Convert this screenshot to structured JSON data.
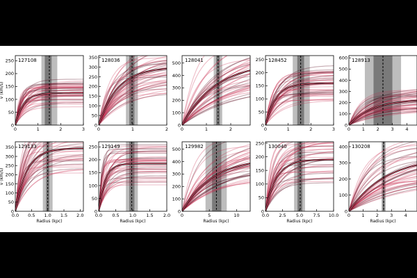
{
  "chart_data": [
    {
      "type": "line",
      "label": "127108",
      "x_ticks": [
        0,
        1,
        2,
        3
      ],
      "x_labels": [
        "0",
        "1",
        "2",
        "3"
      ],
      "y_ticks": [
        0,
        50,
        100,
        150,
        200,
        250
      ],
      "xlim": [
        0,
        3
      ],
      "ylim": [
        0,
        270
      ],
      "v_final": 125,
      "curve_k": 0.35,
      "band_outer": [
        1.15,
        1.85
      ],
      "band_inner": [
        1.3,
        1.6
      ],
      "vline": 1.5,
      "ylabel": "v (km/s)",
      "xlabel": ""
    },
    {
      "type": "line",
      "label": "128036",
      "x_ticks": [
        0,
        1,
        2
      ],
      "x_labels": [
        "0",
        "1",
        "2"
      ],
      "y_ticks": [
        0,
        50,
        100,
        150,
        200,
        250,
        300,
        350
      ],
      "xlim": [
        0,
        2
      ],
      "ylim": [
        0,
        360
      ],
      "v_final": 300,
      "curve_k": 0.55,
      "band_outer": [
        0.8,
        1.15
      ],
      "band_inner": [
        0.9,
        1.05
      ],
      "vline": 0.98,
      "ylabel": "",
      "xlabel": ""
    },
    {
      "type": "line",
      "label": "128041",
      "x_ticks": [
        0,
        1,
        2
      ],
      "x_labels": [
        "0",
        "1",
        "2"
      ],
      "y_ticks": [
        0,
        100,
        200,
        300,
        400,
        500
      ],
      "xlim": [
        0,
        2.8
      ],
      "ylim": [
        0,
        560
      ],
      "v_final": 510,
      "curve_k": 1.4,
      "band_outer": [
        1.3,
        1.65
      ],
      "band_inner": [
        1.4,
        1.55
      ],
      "vline": 1.48,
      "ylabel": "",
      "xlabel": ""
    },
    {
      "type": "line",
      "label": "128452",
      "x_ticks": [
        0,
        1,
        2,
        3
      ],
      "x_labels": [
        "0",
        "1",
        "2",
        "3"
      ],
      "y_ticks": [
        0,
        50,
        100,
        150,
        200,
        250
      ],
      "xlim": [
        0,
        3
      ],
      "ylim": [
        0,
        265
      ],
      "v_final": 160,
      "curve_k": 0.45,
      "band_outer": [
        1.2,
        1.95
      ],
      "band_inner": [
        1.4,
        1.7
      ],
      "vline": 1.55,
      "ylabel": "",
      "xlabel": ""
    },
    {
      "type": "line",
      "label": "128913",
      "x_ticks": [
        0,
        1,
        2,
        3,
        4
      ],
      "x_labels": [
        "0",
        "1",
        "2",
        "3",
        "4"
      ],
      "y_ticks": [
        0,
        100,
        200,
        300,
        400,
        500,
        600
      ],
      "xlim": [
        0,
        4.7
      ],
      "ylim": [
        0,
        620
      ],
      "v_final": 230,
      "curve_k": 1.6,
      "band_outer": [
        1.1,
        3.6
      ],
      "band_inner": [
        1.7,
        3.0
      ],
      "vline": 2.35,
      "ylabel": "",
      "xlabel": ""
    },
    {
      "type": "line",
      "label": "129133",
      "x_ticks": [
        0,
        0.5,
        1.0,
        1.5,
        2.0
      ],
      "x_labels": [
        "0.0",
        "0.5",
        "1.0",
        "1.5",
        "2.0"
      ],
      "y_ticks": [
        0,
        50,
        100,
        150,
        200,
        250,
        300,
        350
      ],
      "xlim": [
        0,
        2.1
      ],
      "ylim": [
        0,
        380
      ],
      "v_final": 345,
      "curve_k": 0.35,
      "band_outer": [
        0.85,
        1.15
      ],
      "band_inner": [
        0.95,
        1.05
      ],
      "vline": 1.0,
      "ylabel": "v (km/s)",
      "xlabel": "Radius (kpc)"
    },
    {
      "type": "line",
      "label": "129149",
      "x_ticks": [
        0,
        0.5,
        1.0,
        1.5,
        2.0
      ],
      "x_labels": [
        "0.0",
        "0.5",
        "1.0",
        "1.5",
        "2.0"
      ],
      "y_ticks": [
        0,
        50,
        100,
        150,
        200,
        250
      ],
      "xlim": [
        0,
        2
      ],
      "ylim": [
        0,
        270
      ],
      "v_final": 185,
      "curve_k": 0.18,
      "band_outer": [
        0.8,
        1.15
      ],
      "band_inner": [
        0.9,
        1.05
      ],
      "vline": 0.97,
      "ylabel": "",
      "xlabel": "Radius (kpc)"
    },
    {
      "type": "line",
      "label": "129982",
      "x_ticks": [
        0,
        5,
        10
      ],
      "x_labels": [
        "0",
        "5",
        "10"
      ],
      "y_ticks": [
        0,
        100,
        200,
        300,
        400,
        500
      ],
      "xlim": [
        0,
        12.5
      ],
      "ylim": [
        0,
        560
      ],
      "v_final": 430,
      "curve_k": 5.5,
      "band_outer": [
        4.3,
        8.2
      ],
      "band_inner": [
        5.5,
        7.2
      ],
      "vline": 6.3,
      "ylabel": "",
      "xlabel": "Radius (kpc)"
    },
    {
      "type": "line",
      "label": "130040",
      "x_ticks": [
        0,
        2.5,
        5.0,
        7.5,
        10.0
      ],
      "x_labels": [
        "0.0",
        "2.5",
        "5.0",
        "7.5",
        "10.0"
      ],
      "y_ticks": [
        0,
        50,
        100,
        150,
        200,
        250
      ],
      "xlim": [
        0,
        10
      ],
      "ylim": [
        0,
        255
      ],
      "v_final": 190,
      "curve_k": 1.6,
      "band_outer": [
        4.2,
        5.8
      ],
      "band_inner": [
        4.7,
        5.4
      ],
      "vline": 5.1,
      "ylabel": "",
      "xlabel": "Radius (kpc)"
    },
    {
      "type": "line",
      "label": "130208",
      "x_ticks": [
        0,
        1,
        2,
        3,
        4
      ],
      "x_labels": [
        "0",
        "1",
        "2",
        "3",
        "4"
      ],
      "y_ticks": [
        0,
        100,
        200,
        300,
        400
      ],
      "xlim": [
        0,
        4.8
      ],
      "ylim": [
        0,
        430
      ],
      "v_final": 340,
      "curve_k": 2.6,
      "band_outer": [
        2.3,
        2.6
      ],
      "band_inner": [
        2.38,
        2.52
      ],
      "vline": 2.45,
      "ylabel": "",
      "xlabel": "Radius (kpc)"
    }
  ]
}
